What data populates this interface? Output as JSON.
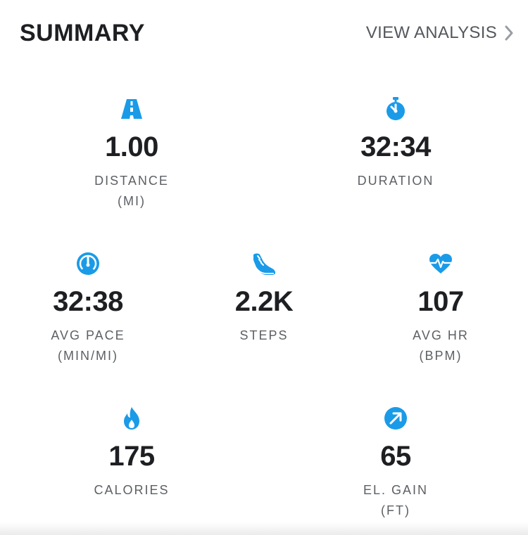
{
  "header": {
    "title": "SUMMARY",
    "view_analysis_label": "VIEW ANALYSIS"
  },
  "colors": {
    "accent": "#1a9be8",
    "text_dark": "#1d1f22",
    "text_muted": "#5d6064"
  },
  "stats": {
    "distance": {
      "icon": "road-icon",
      "value": "1.00",
      "label": "DISTANCE",
      "unit": "(MI)"
    },
    "duration": {
      "icon": "stopwatch-icon",
      "value": "32:34",
      "label": "DURATION",
      "unit": ""
    },
    "avg_pace": {
      "icon": "speedometer-icon",
      "value": "32:38",
      "label": "AVG PACE",
      "unit": "(MIN/MI)"
    },
    "steps": {
      "icon": "shoe-icon",
      "value": "2.2K",
      "label": "STEPS",
      "unit": ""
    },
    "avg_hr": {
      "icon": "heart-rate-icon",
      "value": "107",
      "label": "AVG HR",
      "unit": "(BPM)"
    },
    "calories": {
      "icon": "flame-icon",
      "value": "175",
      "label": "CALORIES",
      "unit": ""
    },
    "elevation_gain": {
      "icon": "elevation-arrow-icon",
      "value": "65",
      "label": "EL. GAIN",
      "unit": "(FT)"
    }
  }
}
